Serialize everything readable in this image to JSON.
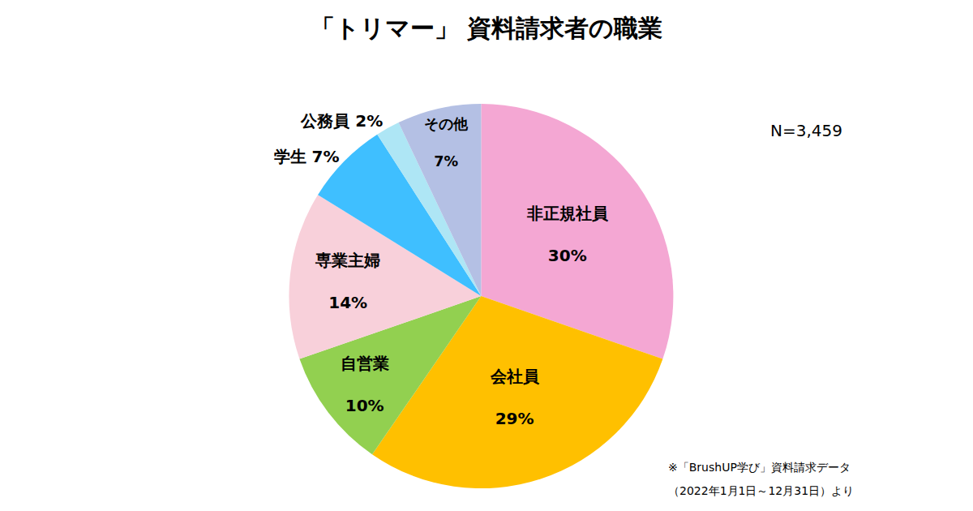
{
  "chart_data": {
    "type": "pie",
    "title": "「トリマー」 資料請求者の職業",
    "categories": [
      "非正規社員",
      "会社員",
      "自営業",
      "専業主婦",
      "学生",
      "公務員",
      "その他"
    ],
    "values": [
      30,
      29,
      10,
      14,
      7,
      2,
      7
    ],
    "value_labels": [
      "30%",
      "29%",
      "10%",
      "14%",
      "7%",
      "2%",
      "7%"
    ],
    "colors": [
      "#f4a7d3",
      "#ffc000",
      "#92d050",
      "#f8d0da",
      "#3fbfff",
      "#aee6f5",
      "#b4c0e4"
    ],
    "data_labels": true,
    "annotations": [
      "N=3,459",
      "※「BrushUP学び」資料請求データ",
      "（2022年1月1日～12月31日）より"
    ]
  }
}
